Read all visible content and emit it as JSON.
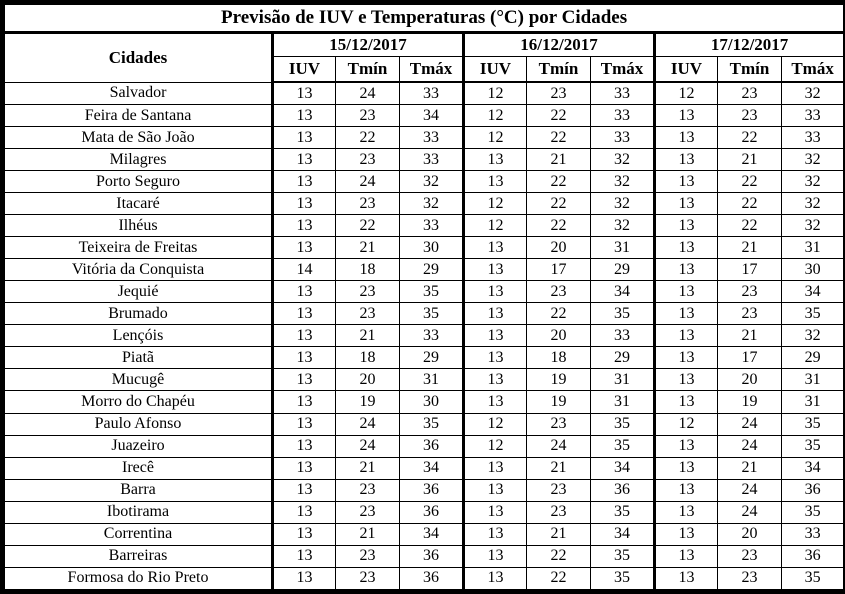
{
  "title": "Previsão de IUV e Temperaturas (°C) por Cidades",
  "table": {
    "city_header": "Cidades",
    "dates": [
      "15/12/2017",
      "16/12/2017",
      "17/12/2017"
    ],
    "sub_headers": [
      "IUV",
      "Tmín",
      "Tmáx"
    ],
    "rows": [
      {
        "city": "Salvador",
        "values": [
          [
            13,
            24,
            33
          ],
          [
            12,
            23,
            33
          ],
          [
            12,
            23,
            32
          ]
        ]
      },
      {
        "city": "Feira de Santana",
        "values": [
          [
            13,
            23,
            34
          ],
          [
            12,
            22,
            33
          ],
          [
            13,
            23,
            33
          ]
        ]
      },
      {
        "city": "Mata de São João",
        "values": [
          [
            13,
            22,
            33
          ],
          [
            12,
            22,
            33
          ],
          [
            13,
            22,
            33
          ]
        ]
      },
      {
        "city": "Milagres",
        "values": [
          [
            13,
            23,
            33
          ],
          [
            13,
            21,
            32
          ],
          [
            13,
            21,
            32
          ]
        ]
      },
      {
        "city": "Porto Seguro",
        "values": [
          [
            13,
            24,
            32
          ],
          [
            13,
            22,
            32
          ],
          [
            13,
            22,
            32
          ]
        ]
      },
      {
        "city": "Itacaré",
        "values": [
          [
            13,
            23,
            32
          ],
          [
            12,
            22,
            32
          ],
          [
            13,
            22,
            32
          ]
        ]
      },
      {
        "city": "Ilhéus",
        "values": [
          [
            13,
            22,
            33
          ],
          [
            12,
            22,
            32
          ],
          [
            13,
            22,
            32
          ]
        ]
      },
      {
        "city": "Teixeira de Freitas",
        "values": [
          [
            13,
            21,
            30
          ],
          [
            13,
            20,
            31
          ],
          [
            13,
            21,
            31
          ]
        ]
      },
      {
        "city": "Vitória da Conquista",
        "values": [
          [
            14,
            18,
            29
          ],
          [
            13,
            17,
            29
          ],
          [
            13,
            17,
            30
          ]
        ]
      },
      {
        "city": "Jequié",
        "values": [
          [
            13,
            23,
            35
          ],
          [
            13,
            23,
            34
          ],
          [
            13,
            23,
            34
          ]
        ]
      },
      {
        "city": "Brumado",
        "values": [
          [
            13,
            23,
            35
          ],
          [
            13,
            22,
            35
          ],
          [
            13,
            23,
            35
          ]
        ]
      },
      {
        "city": "Lençóis",
        "values": [
          [
            13,
            21,
            33
          ],
          [
            13,
            20,
            33
          ],
          [
            13,
            21,
            32
          ]
        ]
      },
      {
        "city": "Piatã",
        "values": [
          [
            13,
            18,
            29
          ],
          [
            13,
            18,
            29
          ],
          [
            13,
            17,
            29
          ]
        ]
      },
      {
        "city": "Mucugê",
        "values": [
          [
            13,
            20,
            31
          ],
          [
            13,
            19,
            31
          ],
          [
            13,
            20,
            31
          ]
        ]
      },
      {
        "city": "Morro do Chapéu",
        "values": [
          [
            13,
            19,
            30
          ],
          [
            13,
            19,
            31
          ],
          [
            13,
            19,
            31
          ]
        ]
      },
      {
        "city": "Paulo Afonso",
        "values": [
          [
            13,
            24,
            35
          ],
          [
            12,
            23,
            35
          ],
          [
            12,
            24,
            35
          ]
        ]
      },
      {
        "city": "Juazeiro",
        "values": [
          [
            13,
            24,
            36
          ],
          [
            12,
            24,
            35
          ],
          [
            13,
            24,
            35
          ]
        ]
      },
      {
        "city": "Irecê",
        "values": [
          [
            13,
            21,
            34
          ],
          [
            13,
            21,
            34
          ],
          [
            13,
            21,
            34
          ]
        ]
      },
      {
        "city": "Barra",
        "values": [
          [
            13,
            23,
            36
          ],
          [
            13,
            23,
            36
          ],
          [
            13,
            24,
            36
          ]
        ]
      },
      {
        "city": "Ibotirama",
        "values": [
          [
            13,
            23,
            36
          ],
          [
            13,
            23,
            35
          ],
          [
            13,
            24,
            35
          ]
        ]
      },
      {
        "city": "Correntina",
        "values": [
          [
            13,
            21,
            34
          ],
          [
            13,
            21,
            34
          ],
          [
            13,
            20,
            33
          ]
        ]
      },
      {
        "city": "Barreiras",
        "values": [
          [
            13,
            23,
            36
          ],
          [
            13,
            22,
            35
          ],
          [
            13,
            23,
            36
          ]
        ]
      },
      {
        "city": "Formosa do Rio Preto",
        "values": [
          [
            13,
            23,
            36
          ],
          [
            13,
            22,
            35
          ],
          [
            13,
            23,
            35
          ]
        ]
      }
    ]
  }
}
